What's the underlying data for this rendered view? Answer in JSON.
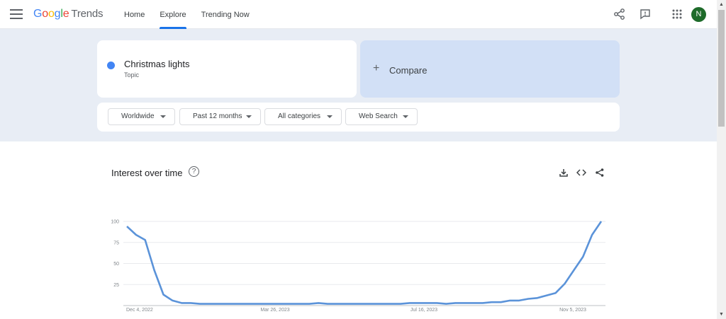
{
  "header": {
    "logo_google": [
      "G",
      "o",
      "o",
      "g",
      "l",
      "e"
    ],
    "logo_trends": "Trends",
    "nav": [
      "Home",
      "Explore",
      "Trending Now"
    ],
    "active_tab": "Explore",
    "avatar_initial": "N"
  },
  "search": {
    "term": "Christmas lights",
    "term_type": "Topic",
    "term_color": "#4285f4",
    "compare_plus": "+",
    "compare_label": "Compare"
  },
  "filters": {
    "region": "Worldwide",
    "time": "Past 12 months",
    "category": "All categories",
    "property": "Web Search"
  },
  "chart_card": {
    "title": "Interest over time",
    "help_glyph": "?"
  },
  "chart_data": {
    "type": "line",
    "title": "Interest over time",
    "xlabel": "",
    "ylabel": "",
    "ylim": [
      0,
      100
    ],
    "yticks": [
      "100",
      "75",
      "50",
      "25"
    ],
    "xticks": [
      "Dec 4, 2022",
      "Mar 26, 2023",
      "Jul 16, 2023",
      "Nov 5, 2023"
    ],
    "grid": true,
    "series": [
      {
        "color": "#5b93d9",
        "values": [
          94,
          84,
          78,
          42,
          13,
          6,
          3,
          3,
          2,
          2,
          2,
          2,
          2,
          2,
          2,
          2,
          2,
          2,
          2,
          2,
          2,
          3,
          2,
          2,
          2,
          2,
          2,
          2,
          2,
          2,
          2,
          3,
          3,
          3,
          3,
          2,
          3,
          3,
          3,
          3,
          4,
          4,
          6,
          6,
          8,
          9,
          12,
          15,
          26,
          42,
          58,
          84,
          100
        ]
      }
    ]
  }
}
